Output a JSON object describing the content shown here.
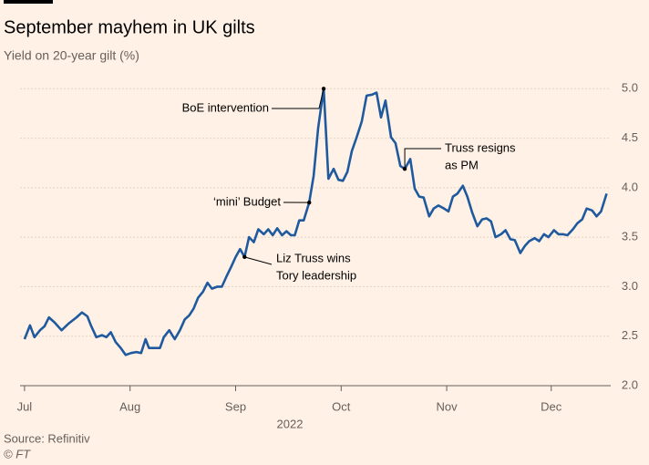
{
  "chart_data": {
    "type": "line",
    "title": "September mayhem in UK gilts",
    "subtitle": "Yield on 20-year gilt (%)",
    "xlabel": "2022",
    "source": "Source: Refinitiv",
    "credit": "© FT",
    "grid": true,
    "xlim": [
      -1.3,
      170.5
    ],
    "xticks": [
      {
        "value": 0,
        "label": "Jul"
      },
      {
        "value": 30.7,
        "label": "Aug"
      },
      {
        "value": 61.4,
        "label": "Sep"
      },
      {
        "value": 92.1,
        "label": "Oct"
      },
      {
        "value": 122.8,
        "label": "Nov"
      },
      {
        "value": 153.2,
        "label": "Dec"
      }
    ],
    "ylim": [
      2.0,
      5.15
    ],
    "yticks": [
      {
        "value": 2.0,
        "label": "2.0"
      },
      2.5,
      {
        "value": 3.0,
        "label": "3.0"
      },
      3.5,
      {
        "value": 4.0,
        "label": "4.0"
      },
      4.5,
      {
        "value": 5.0,
        "label": "5.0"
      }
    ],
    "x": [
      0,
      1.6,
      2.9,
      4.5,
      5.8,
      7.1,
      8.7,
      10.8,
      12.9,
      15.1,
      16.7,
      18.3,
      19.3,
      20.9,
      22.5,
      23.8,
      25.1,
      26.5,
      28.0,
      29.4,
      31.0,
      32.5,
      33.9,
      35.2,
      36.2,
      37.8,
      39.4,
      40.5,
      42.1,
      43.7,
      45.2,
      46.6,
      47.9,
      49.2,
      50.5,
      51.9,
      53.2,
      54.5,
      56.1,
      57.4,
      58.7,
      60.1,
      61.4,
      62.7,
      64.0,
      65.3,
      66.7,
      68.0,
      69.6,
      70.9,
      72.2,
      73.5,
      74.9,
      76.2,
      77.5,
      78.6,
      79.9,
      81.2,
      82.8,
      84.1,
      85.4,
      87.0,
      88.4,
      89.9,
      91.3,
      92.6,
      93.9,
      95.2,
      96.6,
      98.1,
      99.5,
      101.1,
      102.4,
      103.7,
      105.0,
      106.6,
      107.9,
      109.3,
      110.6,
      112.2,
      113.5,
      114.8,
      116.1,
      117.7,
      119.0,
      120.4,
      122.0,
      123.3,
      124.6,
      125.9,
      127.5,
      128.8,
      130.2,
      131.7,
      133.1,
      134.4,
      135.7,
      137.0,
      138.6,
      139.9,
      141.3,
      142.6,
      144.2,
      145.5,
      146.8,
      148.4,
      149.7,
      151.1,
      152.4,
      154.0,
      155.3,
      156.6,
      157.9,
      159.5,
      160.8,
      162.2,
      163.5,
      165.1,
      166.4,
      167.7,
      169.3
    ],
    "series": [
      {
        "name": "Yield on 20-year gilt",
        "color": "#1f5a9e",
        "values": [
          2.47,
          2.61,
          2.49,
          2.56,
          2.6,
          2.69,
          2.64,
          2.56,
          2.63,
          2.69,
          2.74,
          2.7,
          2.61,
          2.49,
          2.51,
          2.49,
          2.54,
          2.44,
          2.38,
          2.31,
          2.33,
          2.34,
          2.33,
          2.47,
          2.38,
          2.38,
          2.38,
          2.49,
          2.56,
          2.47,
          2.56,
          2.67,
          2.71,
          2.78,
          2.89,
          2.95,
          3.04,
          2.98,
          3.0,
          3.0,
          3.1,
          3.2,
          3.3,
          3.38,
          3.3,
          3.5,
          3.45,
          3.58,
          3.53,
          3.58,
          3.52,
          3.59,
          3.52,
          3.56,
          3.52,
          3.52,
          3.67,
          3.67,
          3.85,
          4.12,
          4.6,
          5.0,
          4.09,
          4.19,
          4.08,
          4.07,
          4.16,
          4.37,
          4.51,
          4.67,
          4.93,
          4.94,
          4.96,
          4.71,
          4.88,
          4.51,
          4.45,
          4.22,
          4.19,
          4.29,
          3.99,
          3.91,
          3.9,
          3.71,
          3.79,
          3.82,
          3.79,
          3.76,
          3.91,
          3.94,
          4.02,
          3.91,
          3.75,
          3.61,
          3.68,
          3.69,
          3.66,
          3.5,
          3.53,
          3.57,
          3.48,
          3.47,
          3.34,
          3.41,
          3.46,
          3.49,
          3.46,
          3.53,
          3.5,
          3.57,
          3.53,
          3.53,
          3.52,
          3.58,
          3.64,
          3.68,
          3.79,
          3.77,
          3.71,
          3.76,
          3.94
        ]
      }
    ],
    "annotations": [
      {
        "lines": [
          "BoE intervention"
        ],
        "x": 87.0,
        "y": 5.0
      },
      {
        "lines": [
          "‘mini’ Budget"
        ],
        "x": 82.8,
        "y": 3.85
      },
      {
        "lines": [
          "Liz Truss wins",
          "Tory leadership"
        ],
        "x": 64.0,
        "y": 3.3
      },
      {
        "lines": [
          "Truss resigns",
          "as PM"
        ],
        "x": 110.6,
        "y": 4.19
      }
    ]
  }
}
